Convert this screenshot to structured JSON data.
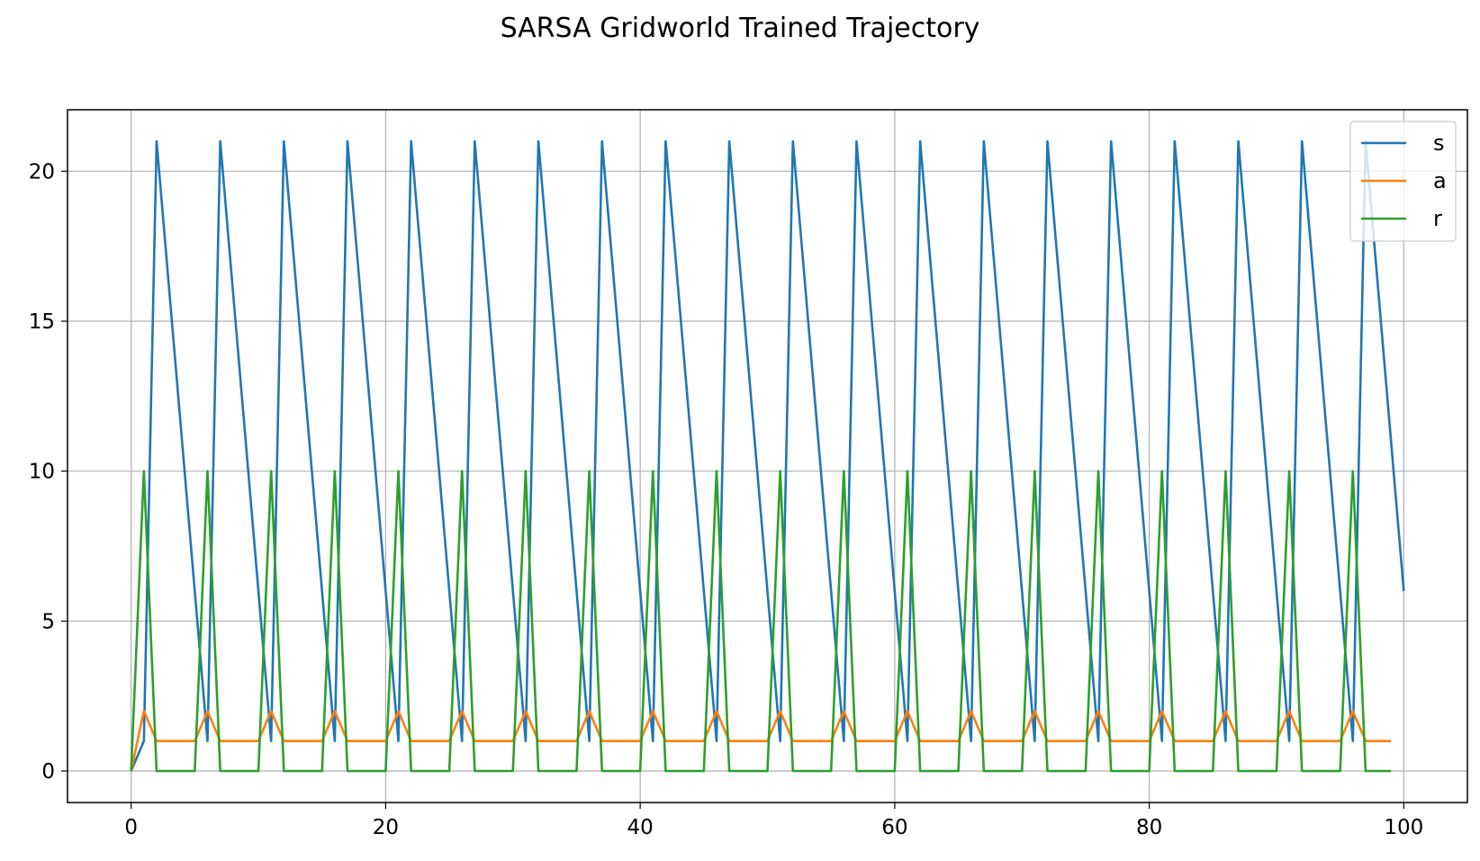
{
  "chart_data": {
    "type": "line",
    "title": "SARSA Gridworld Trained Trajectory",
    "xlabel": "",
    "ylabel": "",
    "xlim": [
      -5,
      105
    ],
    "ylim": [
      -1.05,
      22.05
    ],
    "xticks": [
      0,
      20,
      40,
      60,
      80,
      100
    ],
    "yticks": [
      0,
      5,
      10,
      15,
      20
    ],
    "grid": true,
    "legend_position": "top-right",
    "series": [
      {
        "name": "s",
        "color": "#1f77b4",
        "x": [
          0,
          1,
          2,
          3,
          4,
          5,
          6,
          7,
          8,
          9,
          10,
          11,
          12,
          13,
          14,
          15,
          16,
          17,
          18,
          19,
          20,
          21,
          22,
          23,
          24,
          25,
          26,
          27,
          28,
          29,
          30,
          31,
          32,
          33,
          34,
          35,
          36,
          37,
          38,
          39,
          40,
          41,
          42,
          43,
          44,
          45,
          46,
          47,
          48,
          49,
          50,
          51,
          52,
          53,
          54,
          55,
          56,
          57,
          58,
          59,
          60,
          61,
          62,
          63,
          64,
          65,
          66,
          67,
          68,
          69,
          70,
          71,
          72,
          73,
          74,
          75,
          76,
          77,
          78,
          79,
          80,
          81,
          82,
          83,
          84,
          85,
          86,
          87,
          88,
          89,
          90,
          91,
          92,
          93,
          94,
          95,
          96,
          97,
          98,
          99,
          100
        ],
        "values": [
          0,
          1,
          21,
          16,
          11,
          6,
          1,
          21,
          16,
          11,
          6,
          1,
          21,
          16,
          11,
          6,
          1,
          21,
          16,
          11,
          6,
          1,
          21,
          16,
          11,
          6,
          1,
          21,
          16,
          11,
          6,
          1,
          21,
          16,
          11,
          6,
          1,
          21,
          16,
          11,
          6,
          1,
          21,
          16,
          11,
          6,
          1,
          21,
          16,
          11,
          6,
          1,
          21,
          16,
          11,
          6,
          1,
          21,
          16,
          11,
          6,
          1,
          21,
          16,
          11,
          6,
          1,
          21,
          16,
          11,
          6,
          1,
          21,
          16,
          11,
          6,
          1,
          21,
          16,
          11,
          6,
          1,
          21,
          16,
          11,
          6,
          1,
          21,
          16,
          11,
          6,
          1,
          21,
          16,
          11,
          6,
          1,
          21,
          16,
          11,
          6
        ]
      },
      {
        "name": "a",
        "color": "#ff7f0e",
        "x": [
          0,
          1,
          2,
          3,
          4,
          5,
          6,
          7,
          8,
          9,
          10,
          11,
          12,
          13,
          14,
          15,
          16,
          17,
          18,
          19,
          20,
          21,
          22,
          23,
          24,
          25,
          26,
          27,
          28,
          29,
          30,
          31,
          32,
          33,
          34,
          35,
          36,
          37,
          38,
          39,
          40,
          41,
          42,
          43,
          44,
          45,
          46,
          47,
          48,
          49,
          50,
          51,
          52,
          53,
          54,
          55,
          56,
          57,
          58,
          59,
          60,
          61,
          62,
          63,
          64,
          65,
          66,
          67,
          68,
          69,
          70,
          71,
          72,
          73,
          74,
          75,
          76,
          77,
          78,
          79,
          80,
          81,
          82,
          83,
          84,
          85,
          86,
          87,
          88,
          89,
          90,
          91,
          92,
          93,
          94,
          95,
          96,
          97,
          98,
          99
        ],
        "values": [
          0,
          2,
          1,
          1,
          1,
          1,
          2,
          1,
          1,
          1,
          1,
          2,
          1,
          1,
          1,
          1,
          2,
          1,
          1,
          1,
          1,
          2,
          1,
          1,
          1,
          1,
          2,
          1,
          1,
          1,
          1,
          2,
          1,
          1,
          1,
          1,
          2,
          1,
          1,
          1,
          1,
          2,
          1,
          1,
          1,
          1,
          2,
          1,
          1,
          1,
          1,
          2,
          1,
          1,
          1,
          1,
          2,
          1,
          1,
          1,
          1,
          2,
          1,
          1,
          1,
          1,
          2,
          1,
          1,
          1,
          1,
          2,
          1,
          1,
          1,
          1,
          2,
          1,
          1,
          1,
          1,
          2,
          1,
          1,
          1,
          1,
          2,
          1,
          1,
          1,
          1,
          2,
          1,
          1,
          1,
          1,
          2,
          1,
          1,
          1
        ]
      },
      {
        "name": "r",
        "color": "#2ca02c",
        "x": [
          0,
          1,
          2,
          3,
          4,
          5,
          6,
          7,
          8,
          9,
          10,
          11,
          12,
          13,
          14,
          15,
          16,
          17,
          18,
          19,
          20,
          21,
          22,
          23,
          24,
          25,
          26,
          27,
          28,
          29,
          30,
          31,
          32,
          33,
          34,
          35,
          36,
          37,
          38,
          39,
          40,
          41,
          42,
          43,
          44,
          45,
          46,
          47,
          48,
          49,
          50,
          51,
          52,
          53,
          54,
          55,
          56,
          57,
          58,
          59,
          60,
          61,
          62,
          63,
          64,
          65,
          66,
          67,
          68,
          69,
          70,
          71,
          72,
          73,
          74,
          75,
          76,
          77,
          78,
          79,
          80,
          81,
          82,
          83,
          84,
          85,
          86,
          87,
          88,
          89,
          90,
          91,
          92,
          93,
          94,
          95,
          96,
          97,
          98,
          99
        ],
        "values": [
          0,
          10,
          0,
          0,
          0,
          0,
          10,
          0,
          0,
          0,
          0,
          10,
          0,
          0,
          0,
          0,
          10,
          0,
          0,
          0,
          0,
          10,
          0,
          0,
          0,
          0,
          10,
          0,
          0,
          0,
          0,
          10,
          0,
          0,
          0,
          0,
          10,
          0,
          0,
          0,
          0,
          10,
          0,
          0,
          0,
          0,
          10,
          0,
          0,
          0,
          0,
          10,
          0,
          0,
          0,
          0,
          10,
          0,
          0,
          0,
          0,
          10,
          0,
          0,
          0,
          0,
          10,
          0,
          0,
          0,
          0,
          10,
          0,
          0,
          0,
          0,
          10,
          0,
          0,
          0,
          0,
          10,
          0,
          0,
          0,
          0,
          10,
          0,
          0,
          0,
          0,
          10,
          0,
          0,
          0,
          0,
          10,
          0,
          0,
          0
        ]
      }
    ]
  }
}
